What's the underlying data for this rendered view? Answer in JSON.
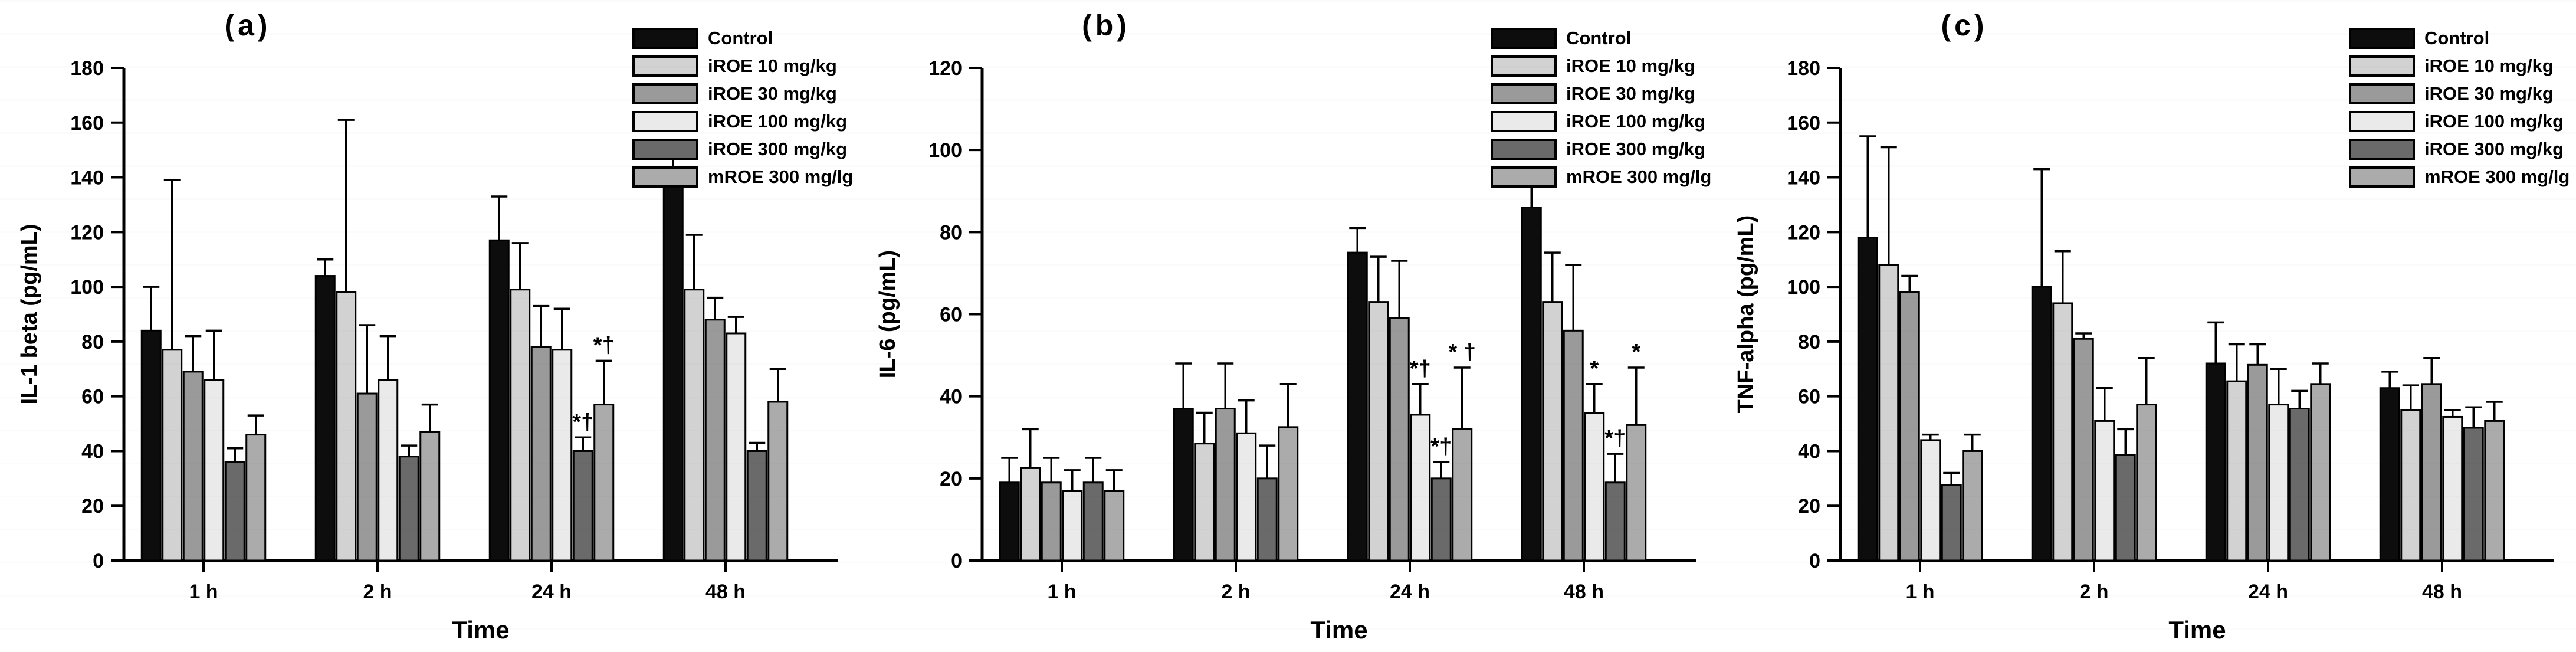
{
  "figure": {
    "background": "#ffffff",
    "axis_color": "#000000",
    "bar_border_color": "#000000"
  },
  "legend": {
    "items": [
      {
        "label": "Control",
        "color": "#0d0d0d"
      },
      {
        "label": "iROE 10 mg/kg",
        "color": "#d2d2d2"
      },
      {
        "label": "iROE 30 mg/kg",
        "color": "#9a9a9a"
      },
      {
        "label": "iROE 100 mg/kg",
        "color": "#eaeaea"
      },
      {
        "label": "iROE 300 mg/kg",
        "color": "#6a6a6a"
      },
      {
        "label": "mROE 300 mg/lg",
        "color": "#ababab"
      }
    ]
  },
  "chart_data": [
    {
      "type": "bar",
      "panel_label": "(a)",
      "title": "",
      "ylabel": "IL-1 beta (pg/mL)",
      "xlabel": "Time",
      "ylim": [
        0,
        180
      ],
      "ytick_step": 20,
      "yticks": [
        0,
        20,
        40,
        60,
        80,
        100,
        120,
        140,
        160,
        180
      ],
      "grid": false,
      "legend_position": "top-right",
      "categories": [
        "1 h",
        "2 h",
        "24 h",
        "48 h"
      ],
      "series": [
        {
          "name": "Control",
          "color": "#0d0d0d",
          "values": [
            84,
            104,
            117,
            137
          ],
          "errors": [
            16,
            6,
            16,
            10
          ],
          "annotations": [
            "",
            "",
            "",
            ""
          ]
        },
        {
          "name": "iROE 10 mg/kg",
          "color": "#d2d2d2",
          "values": [
            77,
            98,
            99,
            99
          ],
          "errors": [
            62,
            63,
            17,
            20
          ],
          "annotations": [
            "",
            "",
            "",
            ""
          ]
        },
        {
          "name": "iROE 30 mg/kg",
          "color": "#9a9a9a",
          "values": [
            69,
            61,
            78,
            88
          ],
          "errors": [
            13,
            25,
            15,
            8
          ],
          "annotations": [
            "",
            "",
            "",
            ""
          ]
        },
        {
          "name": "iROE 100 mg/kg",
          "color": "#eaeaea",
          "values": [
            66,
            66,
            77,
            83
          ],
          "errors": [
            18,
            16,
            15,
            6
          ],
          "annotations": [
            "",
            "",
            "",
            ""
          ]
        },
        {
          "name": "iROE 300 mg/kg",
          "color": "#6a6a6a",
          "values": [
            36,
            38,
            40,
            40
          ],
          "errors": [
            5,
            4,
            5,
            3
          ],
          "annotations": [
            "",
            "",
            "*†",
            ""
          ]
        },
        {
          "name": "mROE 300 mg/lg",
          "color": "#ababab",
          "values": [
            46,
            47,
            57,
            58
          ],
          "errors": [
            7,
            10,
            16,
            12
          ],
          "annotations": [
            "",
            "",
            "*†",
            ""
          ]
        }
      ]
    },
    {
      "type": "bar",
      "panel_label": "(b)",
      "title": "",
      "ylabel": "IL-6 (pg/mL)",
      "xlabel": "Time",
      "ylim": [
        0,
        120
      ],
      "ytick_step": 20,
      "yticks": [
        0,
        20,
        40,
        60,
        80,
        100,
        120
      ],
      "grid": false,
      "legend_position": "top-right",
      "categories": [
        "1 h",
        "2 h",
        "24 h",
        "48 h"
      ],
      "series": [
        {
          "name": "Control",
          "color": "#0d0d0d",
          "values": [
            19,
            37,
            75,
            86
          ],
          "errors": [
            6,
            11,
            6,
            9
          ],
          "annotations": [
            "",
            "",
            "",
            ""
          ]
        },
        {
          "name": "iROE 10 mg/kg",
          "color": "#d2d2d2",
          "values": [
            22.5,
            28.5,
            63,
            63
          ],
          "errors": [
            9.5,
            7.5,
            11,
            12
          ],
          "annotations": [
            "",
            "",
            "",
            ""
          ]
        },
        {
          "name": "iROE 30 mg/kg",
          "color": "#9a9a9a",
          "values": [
            19,
            37,
            59,
            56
          ],
          "errors": [
            6,
            11,
            14,
            16
          ],
          "annotations": [
            "",
            "",
            "",
            ""
          ]
        },
        {
          "name": "iROE 100 mg/kg",
          "color": "#eaeaea",
          "values": [
            17,
            31,
            35.5,
            36
          ],
          "errors": [
            5,
            8,
            7.5,
            7
          ],
          "annotations": [
            "",
            "",
            "*†",
            "*"
          ]
        },
        {
          "name": "iROE 300 mg/kg",
          "color": "#6a6a6a",
          "values": [
            19,
            20,
            20,
            19
          ],
          "errors": [
            6,
            8,
            4,
            7
          ],
          "annotations": [
            "",
            "",
            "*†",
            "*†"
          ]
        },
        {
          "name": "mROE 300 mg/lg",
          "color": "#ababab",
          "values": [
            17,
            32.5,
            32,
            33
          ],
          "errors": [
            5,
            10.5,
            15,
            14
          ],
          "annotations": [
            "",
            "",
            "* †",
            "*"
          ]
        }
      ]
    },
    {
      "type": "bar",
      "panel_label": "(c)",
      "title": "",
      "ylabel": "TNF-alpha (pg/mL)",
      "xlabel": "Time",
      "ylim": [
        0,
        180
      ],
      "ytick_step": 20,
      "yticks": [
        0,
        20,
        40,
        60,
        80,
        100,
        120,
        140,
        160,
        180
      ],
      "grid": false,
      "legend_position": "top-right",
      "categories": [
        "1 h",
        "2 h",
        "24 h",
        "48 h"
      ],
      "series": [
        {
          "name": "Control",
          "color": "#0d0d0d",
          "values": [
            118,
            100,
            72,
            63
          ],
          "errors": [
            37,
            43,
            15,
            6
          ],
          "annotations": [
            "",
            "",
            "",
            ""
          ]
        },
        {
          "name": "iROE 10 mg/kg",
          "color": "#d2d2d2",
          "values": [
            108,
            94,
            65.5,
            55
          ],
          "errors": [
            43,
            19,
            13.5,
            9
          ],
          "annotations": [
            "",
            "",
            "",
            ""
          ]
        },
        {
          "name": "iROE 30 mg/kg",
          "color": "#9a9a9a",
          "values": [
            98,
            81,
            71.5,
            64.5
          ],
          "errors": [
            6,
            2,
            7.5,
            9.5
          ],
          "annotations": [
            "",
            "",
            "",
            ""
          ]
        },
        {
          "name": "iROE 100 mg/kg",
          "color": "#eaeaea",
          "values": [
            44,
            51,
            57,
            52.5
          ],
          "errors": [
            2,
            12,
            13,
            2.5
          ],
          "annotations": [
            "",
            "",
            "",
            ""
          ]
        },
        {
          "name": "iROE 300 mg/kg",
          "color": "#6a6a6a",
          "values": [
            27.5,
            38.5,
            55.5,
            48.5
          ],
          "errors": [
            4.5,
            9.5,
            6.5,
            7.5
          ],
          "annotations": [
            "",
            "",
            "",
            ""
          ]
        },
        {
          "name": "mROE 300 mg/lg",
          "color": "#ababab",
          "values": [
            40,
            57,
            64.5,
            51
          ],
          "errors": [
            6,
            17,
            7.5,
            7
          ],
          "annotations": [
            "",
            "",
            "",
            ""
          ]
        }
      ]
    }
  ]
}
